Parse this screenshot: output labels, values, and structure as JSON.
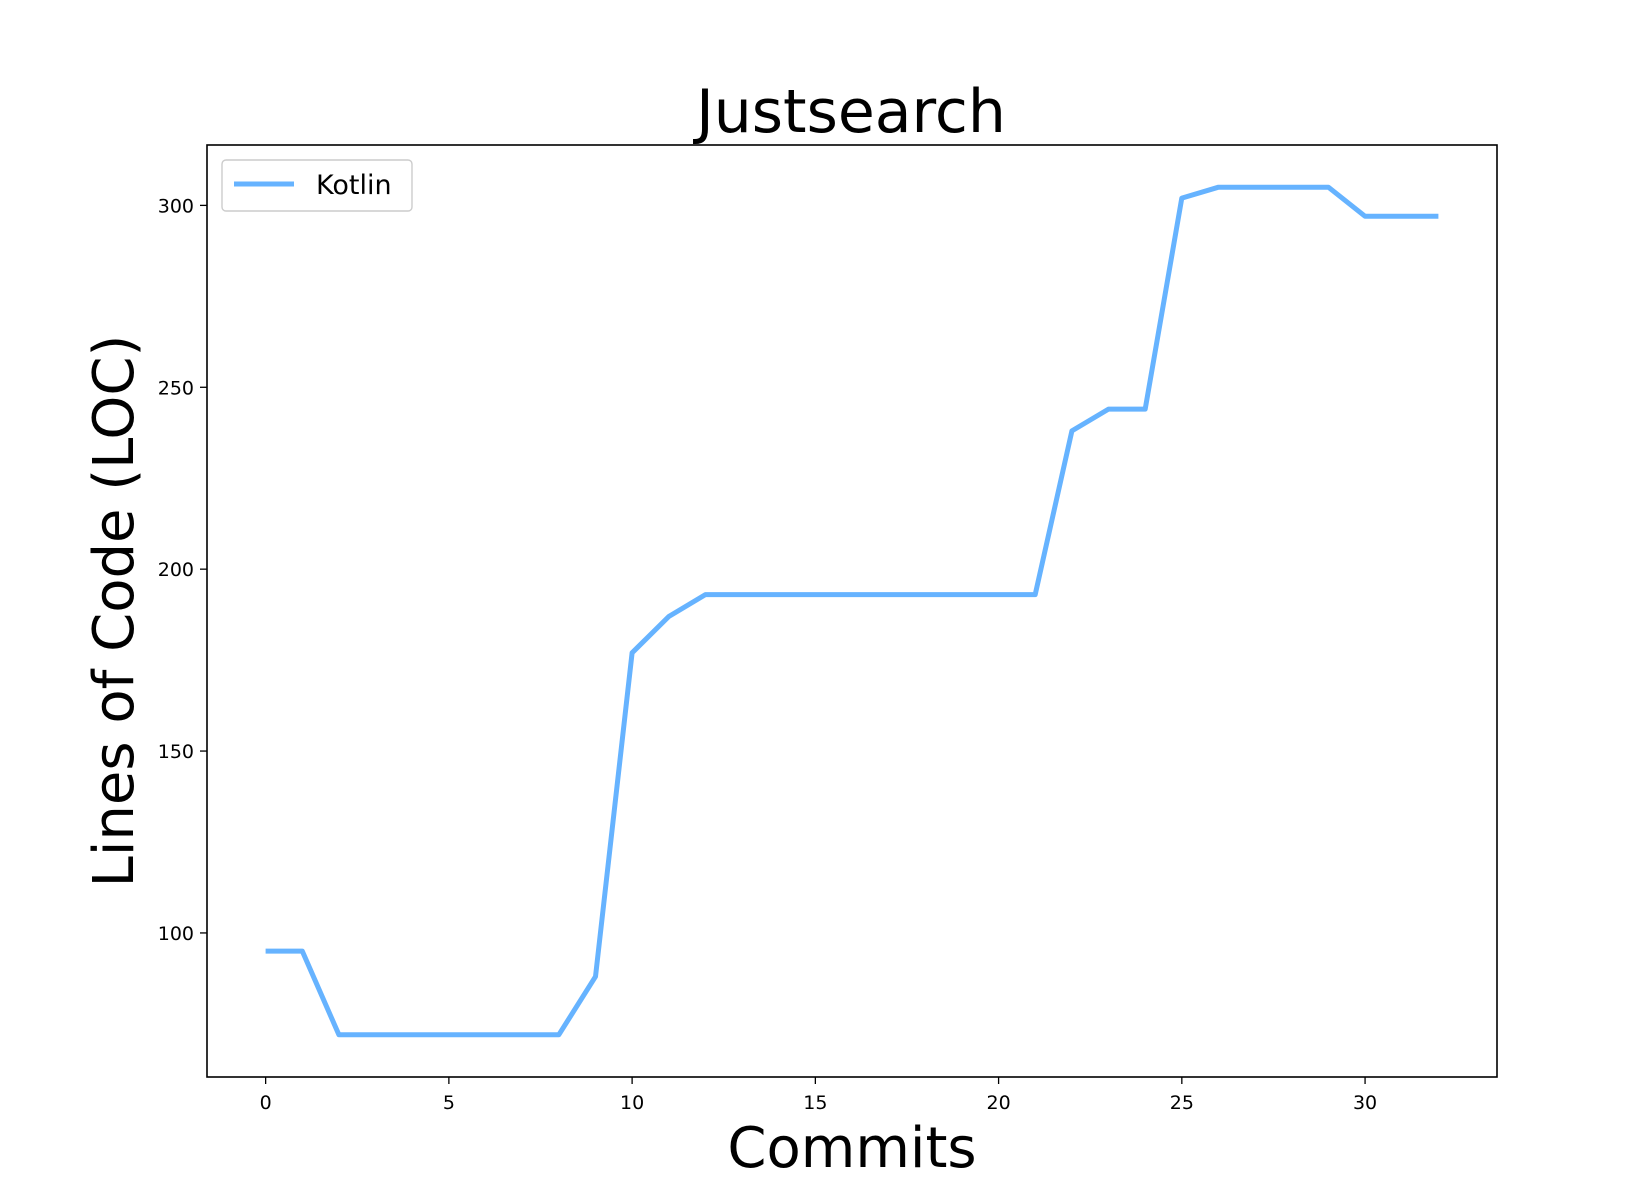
{
  "chart_data": {
    "type": "line",
    "title": "Justsearch",
    "xlabel": "Commits",
    "ylabel": "Lines of Code (LOC)",
    "xlim": [
      -1.6,
      33.6
    ],
    "ylim": [
      60.4,
      316.6
    ],
    "xticks": [
      0,
      5,
      10,
      15,
      20,
      25,
      30
    ],
    "yticks": [
      100,
      150,
      200,
      250,
      300
    ],
    "grid": false,
    "legend": {
      "position": "top-left",
      "entries": [
        "Kotlin"
      ]
    },
    "series": [
      {
        "name": "Kotlin",
        "color": "#66b3ff",
        "x": [
          0,
          1,
          2,
          3,
          4,
          5,
          6,
          7,
          8,
          9,
          10,
          11,
          12,
          13,
          14,
          15,
          16,
          17,
          18,
          19,
          20,
          21,
          22,
          23,
          24,
          25,
          26,
          27,
          28,
          29,
          30,
          31,
          32
        ],
        "y": [
          95,
          95,
          72,
          72,
          72,
          72,
          72,
          72,
          72,
          88,
          177,
          187,
          193,
          193,
          193,
          193,
          193,
          193,
          193,
          193,
          193,
          193,
          238,
          244,
          244,
          302,
          305,
          305,
          305,
          305,
          297,
          297,
          297
        ]
      }
    ]
  }
}
